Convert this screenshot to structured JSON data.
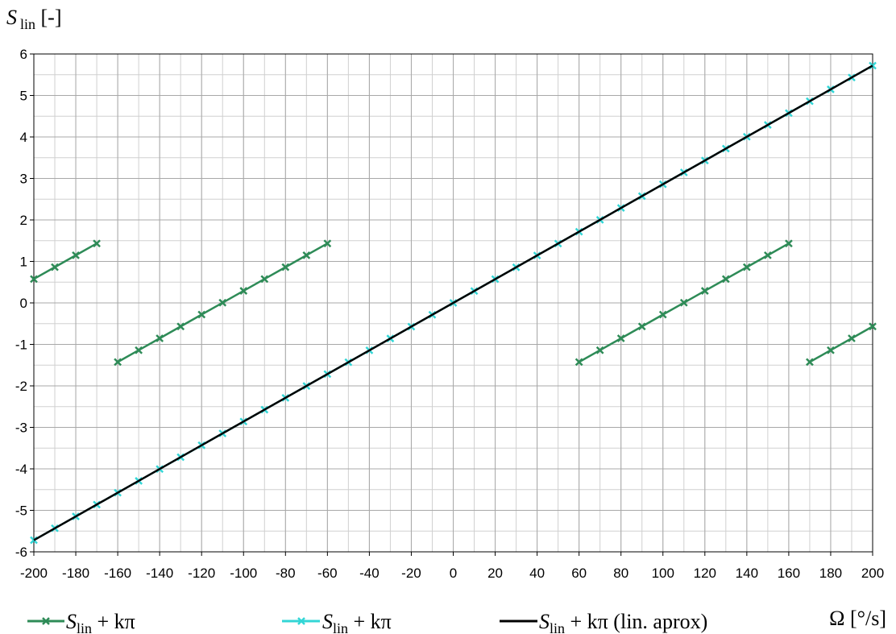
{
  "chart_data": {
    "type": "line",
    "ylabel": {
      "symbol": "S",
      "subscript": "lin",
      "unit": " [-]"
    },
    "xlabel": {
      "symbol": "Ω",
      "unit": " [°/s]"
    },
    "xlim": [
      -200,
      200
    ],
    "ylim": [
      -6,
      6
    ],
    "x_ticks": [
      "-200",
      "-180",
      "-160",
      "-140",
      "-120",
      "-100",
      "-80",
      "-60",
      "-40",
      "-20",
      "0",
      "20",
      "40",
      "60",
      "80",
      "100",
      "120",
      "140",
      "160",
      "180",
      "200"
    ],
    "y_ticks": [
      "6",
      "5",
      "4",
      "3",
      "2",
      "1",
      "0",
      "-1",
      "-2",
      "-3",
      "-4",
      "-5",
      "-6"
    ],
    "grid": true,
    "grid_minor_x_step": 10,
    "grid_minor_y_step": 0.5,
    "legend_position": "bottom",
    "series": [
      {
        "name": {
          "symbol": "S",
          "subscript": "lin",
          "suffix": " + kπ"
        },
        "color": "#2e8b57",
        "marker": "x",
        "segments": [
          {
            "x": [
              -200,
              -190,
              -180,
              -170
            ],
            "y": [
              0.576,
              0.862,
              1.148,
              1.433
            ]
          },
          {
            "x": [
              -160,
              -150,
              -140,
              -130,
              -120,
              -110,
              -100,
              -90,
              -80,
              -70,
              -60
            ],
            "y": [
              -1.425,
              -1.14,
              -0.854,
              -0.568,
              -0.282,
              0.004,
              0.29,
              0.576,
              0.862,
              1.148,
              1.433
            ]
          },
          {
            "x": [
              60,
              70,
              80,
              90,
              100,
              110,
              120,
              130,
              140,
              150,
              160
            ],
            "y": [
              -1.425,
              -1.14,
              -0.854,
              -0.568,
              -0.282,
              0.004,
              0.29,
              0.576,
              0.862,
              1.148,
              1.433
            ]
          },
          {
            "x": [
              170,
              180,
              190,
              200
            ],
            "y": [
              -1.425,
              -1.14,
              -0.854,
              -0.568
            ]
          }
        ]
      },
      {
        "name": {
          "symbol": "S",
          "subscript": "lin",
          "suffix": " + kπ"
        },
        "color": "#33d6d6",
        "marker": "x",
        "segments": [
          {
            "x": [
              -200,
              -190,
              -180,
              -170,
              -160,
              -150,
              -140,
              -130,
              -120,
              -110,
              -100,
              -90,
              -80,
              -70,
              -60,
              -50,
              -40,
              -30,
              -20,
              -10,
              0,
              10,
              20,
              30,
              40,
              50,
              60,
              70,
              80,
              90,
              100,
              110,
              120,
              130,
              140,
              150,
              160,
              170,
              180,
              190,
              200
            ],
            "y": [
              -5.719,
              -5.433,
              -5.147,
              -4.861,
              -4.575,
              -4.29,
              -4.004,
              -3.718,
              -3.432,
              -3.146,
              -2.86,
              -2.574,
              -2.288,
              -2.002,
              -1.716,
              -1.43,
              -1.144,
              -0.858,
              -0.572,
              -0.286,
              0,
              0.286,
              0.572,
              0.858,
              1.144,
              1.43,
              1.716,
              2.002,
              2.288,
              2.574,
              2.86,
              3.146,
              3.432,
              3.718,
              4.004,
              4.29,
              4.575,
              4.861,
              5.147,
              5.433,
              5.719
            ]
          }
        ]
      },
      {
        "name": {
          "symbol": "S",
          "subscript": "lin",
          "suffix": " + kπ (lin. aprox)"
        },
        "color": "#000000",
        "marker": "none",
        "segments": [
          {
            "x": [
              -200,
              200
            ],
            "y": [
              -5.719,
              5.719
            ]
          }
        ]
      }
    ]
  }
}
